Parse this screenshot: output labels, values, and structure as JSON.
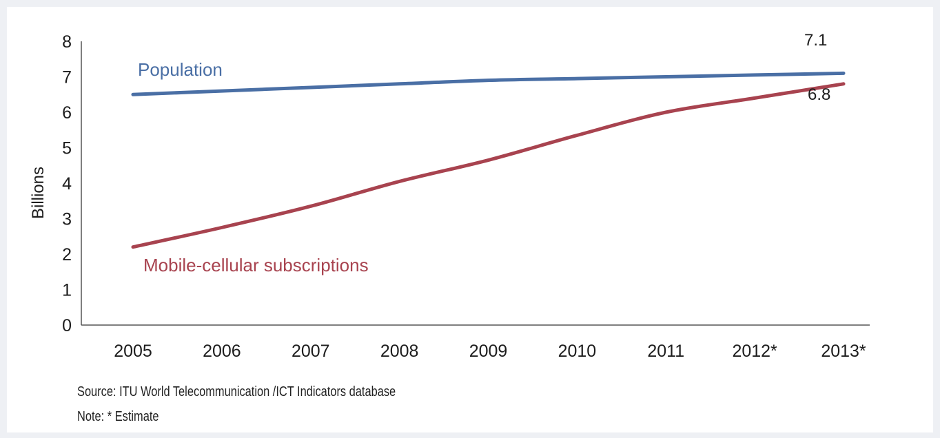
{
  "chart_data": {
    "type": "line",
    "x": [
      "2005",
      "2006",
      "2007",
      "2008",
      "2009",
      "2010",
      "2011",
      "2012*",
      "2013*"
    ],
    "ylabel": "Billions",
    "ylim": [
      0,
      8
    ],
    "yticks": [
      "0",
      "1",
      "2",
      "3",
      "4",
      "5",
      "6",
      "7",
      "8"
    ],
    "grid": false,
    "series": [
      {
        "name": "Population",
        "values": [
          6.5,
          6.6,
          6.7,
          6.8,
          6.9,
          6.95,
          7.0,
          7.05,
          7.1
        ],
        "color": "#4a6fa5",
        "end_label": "7.1"
      },
      {
        "name": "Mobile-cellular subscriptions",
        "values": [
          2.2,
          2.75,
          3.35,
          4.05,
          4.65,
          5.35,
          6.0,
          6.4,
          6.8
        ],
        "color": "#a8434f",
        "end_label": "6.8"
      }
    ]
  },
  "footer": {
    "source_label": "Source:",
    "source_text": "ITU World Telecommunication /ICT Indicators database",
    "note_label": "Note:",
    "note_text": "* Estimate"
  }
}
